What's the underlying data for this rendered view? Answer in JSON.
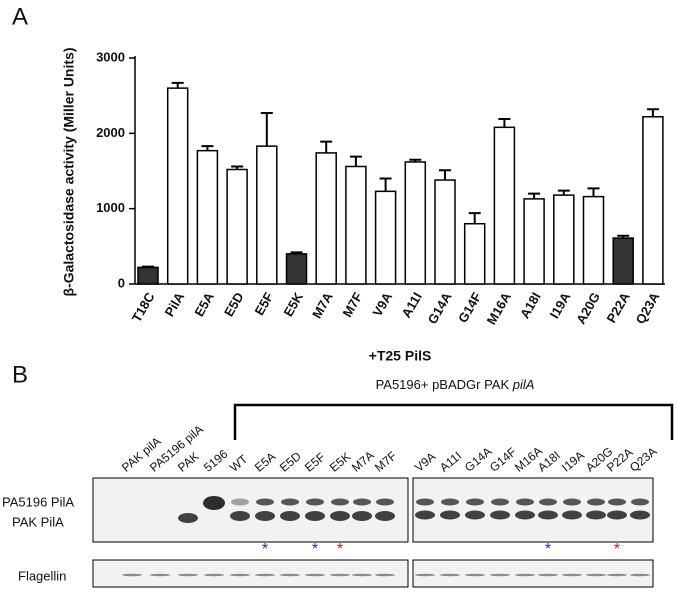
{
  "chart_data": {
    "type": "bar",
    "panel_label": "A",
    "ylabel": "β-Galactosidase activity  (Miller Units)",
    "xlabel": "+T25 PilS",
    "categories": [
      "T18C",
      "PilA",
      "E5A",
      "E5D",
      "E5F",
      "E5K",
      "M7A",
      "M7F",
      "V9A",
      "A11I",
      "G14A",
      "G14F",
      "M16A",
      "A18I",
      "I19A",
      "A20G",
      "P22A",
      "Q23A"
    ],
    "values": [
      220,
      2600,
      1770,
      1520,
      1830,
      400,
      1740,
      1560,
      1230,
      1620,
      1380,
      800,
      2080,
      1130,
      1180,
      1160,
      610,
      2220
    ],
    "errors": [
      10,
      70,
      60,
      40,
      440,
      20,
      150,
      130,
      170,
      30,
      130,
      140,
      110,
      70,
      60,
      110,
      30,
      100
    ],
    "colors": [
      "#333333",
      "#ffffff",
      "#ffffff",
      "#ffffff",
      "#ffffff",
      "#333333",
      "#ffffff",
      "#ffffff",
      "#ffffff",
      "#ffffff",
      "#ffffff",
      "#ffffff",
      "#ffffff",
      "#ffffff",
      "#ffffff",
      "#ffffff",
      "#333333",
      "#ffffff"
    ],
    "ylim": [
      0,
      3000
    ],
    "yticks": [
      0,
      1000,
      2000,
      3000
    ]
  },
  "blot": {
    "panel_label": "B",
    "title": "PA5196+ pBADGr PAK ",
    "title_italic": "pilA",
    "lanes_left": [
      "PAK pilA",
      "PA5196 pilA",
      "PAK",
      "5196",
      "WT",
      "E5A",
      "E5D",
      "E5F",
      "E5K",
      "M7A",
      "M7F"
    ],
    "lanes_right": [
      "V9A",
      "A11I",
      "G14A",
      "G14F",
      "M16A",
      "A18I",
      "I19A",
      "A20G",
      "P22A",
      "Q23A"
    ],
    "row_labels": [
      "PA5196 PilA",
      "PAK PilA",
      "Flagellin"
    ],
    "asterisks": [
      {
        "text": "*",
        "color": "#2a2a9a"
      },
      {
        "text": "*",
        "color": "#2a2a9a"
      },
      {
        "text": "*",
        "color": "#d02020"
      },
      {
        "text": "*",
        "color": "#2a2a9a"
      },
      {
        "text": "*",
        "color": "#d02020"
      }
    ]
  }
}
